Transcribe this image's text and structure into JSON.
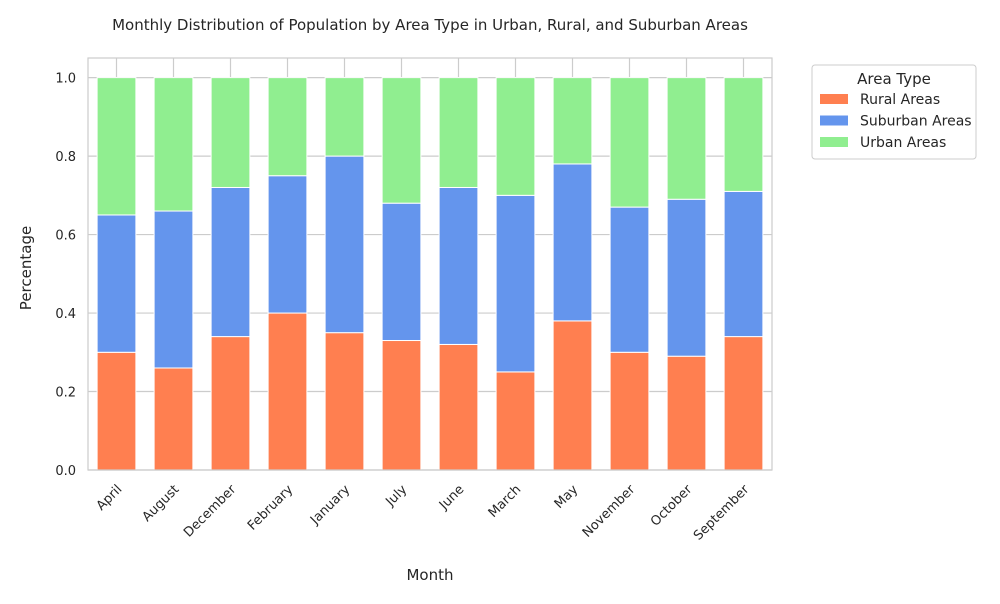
{
  "chart_data": {
    "type": "bar",
    "stacked": true,
    "title": "Monthly Distribution of Population by Area Type in Urban, Rural, and Suburban Areas",
    "xlabel": "Month",
    "ylabel": "Percentage",
    "ylim": [
      0,
      1.05
    ],
    "y_ticks": [
      0.0,
      0.2,
      0.4,
      0.6,
      0.8,
      1.0
    ],
    "y_tick_labels": [
      "0.0",
      "0.2",
      "0.4",
      "0.6",
      "0.8",
      "1.0"
    ],
    "grid": true,
    "legend_title": "Area Type",
    "legend_position": "outside-top-right",
    "categories": [
      "April",
      "August",
      "December",
      "February",
      "January",
      "July",
      "June",
      "March",
      "May",
      "November",
      "October",
      "September"
    ],
    "series": [
      {
        "name": "Rural Areas",
        "color": "#ff7f50",
        "values": [
          0.3,
          0.26,
          0.34,
          0.4,
          0.35,
          0.33,
          0.32,
          0.25,
          0.38,
          0.3,
          0.29,
          0.34
        ]
      },
      {
        "name": "Suburban Areas",
        "color": "#6495ed",
        "values": [
          0.35,
          0.4,
          0.38,
          0.35,
          0.45,
          0.35,
          0.4,
          0.45,
          0.4,
          0.37,
          0.4,
          0.37
        ]
      },
      {
        "name": "Urban Areas",
        "color": "#90ee90",
        "values": [
          0.35,
          0.34,
          0.28,
          0.25,
          0.2,
          0.32,
          0.28,
          0.3,
          0.22,
          0.33,
          0.31,
          0.29
        ]
      }
    ]
  }
}
